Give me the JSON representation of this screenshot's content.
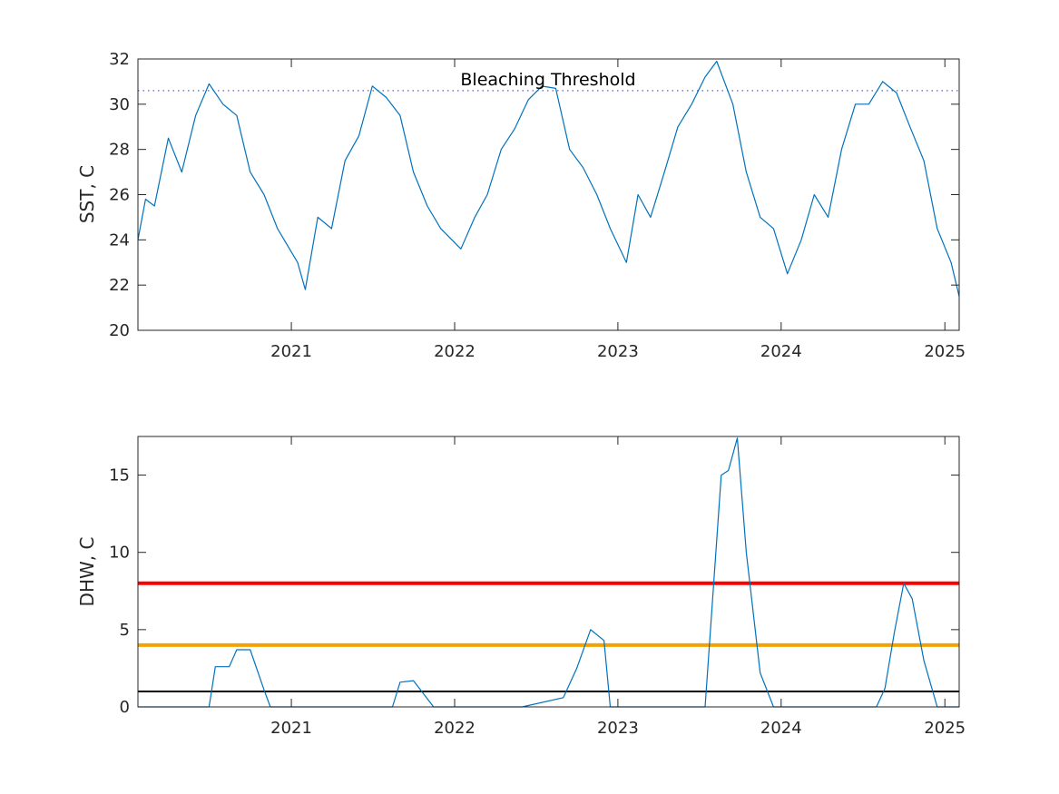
{
  "chart_data": [
    {
      "type": "line",
      "title": "",
      "xlabel": "",
      "ylabel": "SST, C",
      "xlim": [
        "2020-01-24",
        "2025-02-02"
      ],
      "ylim": [
        20,
        32
      ],
      "x_ticks": [
        "2021",
        "2022",
        "2023",
        "2024",
        "2025"
      ],
      "y_ticks": [
        20,
        22,
        24,
        26,
        28,
        30,
        32
      ],
      "grid": false,
      "legend": "none",
      "annotation": "Bleaching Threshold",
      "threshold": {
        "value": 30.6,
        "style": "dotted",
        "color": "#5a5ad6"
      },
      "series": [
        {
          "color": "#0072bd",
          "x": [
            "2020-01-24",
            "2020-02-10",
            "2020-03-01",
            "2020-04-01",
            "2020-05-01",
            "2020-06-01",
            "2020-07-01",
            "2020-08-01",
            "2020-09-01",
            "2020-10-01",
            "2020-11-01",
            "2020-12-01",
            "2021-01-15",
            "2021-02-01",
            "2021-03-01",
            "2021-04-01",
            "2021-05-01",
            "2021-06-01",
            "2021-07-01",
            "2021-08-01",
            "2021-09-01",
            "2021-10-01",
            "2021-11-01",
            "2021-12-01",
            "2022-01-15",
            "2022-02-15",
            "2022-03-15",
            "2022-04-15",
            "2022-05-15",
            "2022-06-15",
            "2022-07-15",
            "2022-08-15",
            "2022-09-15",
            "2022-10-15",
            "2022-11-15",
            "2022-12-15",
            "2023-01-20",
            "2023-02-15",
            "2023-03-15",
            "2023-04-15",
            "2023-05-15",
            "2023-06-15",
            "2023-07-15",
            "2023-08-10",
            "2023-09-15",
            "2023-10-15",
            "2023-11-15",
            "2023-12-15",
            "2024-01-15",
            "2024-02-15",
            "2024-03-15",
            "2024-04-15",
            "2024-05-15",
            "2024-06-15",
            "2024-07-15",
            "2024-08-15",
            "2024-09-15",
            "2024-10-15",
            "2024-11-15",
            "2024-12-15",
            "2025-01-15",
            "2025-02-02"
          ],
          "y": [
            24.0,
            25.8,
            25.5,
            28.5,
            27.0,
            29.5,
            30.9,
            30.0,
            29.5,
            27.0,
            26.0,
            24.5,
            23.0,
            21.8,
            25.0,
            24.5,
            27.5,
            28.6,
            30.8,
            30.3,
            29.5,
            27.0,
            25.5,
            24.5,
            23.6,
            25.0,
            26.0,
            28.0,
            28.9,
            30.2,
            30.8,
            30.7,
            28.0,
            27.2,
            26.0,
            24.5,
            23.0,
            26.0,
            25.0,
            27.0,
            29.0,
            30.0,
            31.2,
            31.9,
            30.0,
            27.0,
            25.0,
            24.5,
            22.5,
            24.0,
            26.0,
            25.0,
            28.0,
            30.0,
            30.0,
            31.0,
            30.5,
            29.0,
            27.5,
            24.5,
            23.0,
            21.5
          ]
        }
      ]
    },
    {
      "type": "line",
      "title": "",
      "xlabel": "",
      "ylabel": "DHW, C",
      "xlim": [
        "2020-01-24",
        "2025-02-02"
      ],
      "ylim": [
        0,
        17.5
      ],
      "x_ticks": [
        "2021",
        "2022",
        "2023",
        "2024",
        "2025"
      ],
      "y_ticks": [
        0,
        5,
        10,
        15
      ],
      "grid": false,
      "legend": "none",
      "reference_lines": [
        {
          "value": 8,
          "color": "#ff0000"
        },
        {
          "value": 4,
          "color": "#f5a200"
        },
        {
          "value": 1,
          "color": "#000000"
        }
      ],
      "series": [
        {
          "color": "#0072bd",
          "x": [
            "2020-01-24",
            "2020-07-01",
            "2020-07-15",
            "2020-08-15",
            "2020-09-01",
            "2020-10-01",
            "2020-11-01",
            "2020-11-15",
            "2021-06-01",
            "2021-08-15",
            "2021-09-01",
            "2021-10-01",
            "2021-11-15",
            "2021-12-01",
            "2022-06-01",
            "2022-09-01",
            "2022-10-01",
            "2022-11-01",
            "2022-12-01",
            "2022-12-15",
            "2023-06-15",
            "2023-07-15",
            "2023-08-20",
            "2023-09-05",
            "2023-09-25",
            "2023-10-15",
            "2023-11-15",
            "2023-12-15",
            "2024-01-05",
            "2024-08-01",
            "2024-08-20",
            "2024-09-10",
            "2024-10-01",
            "2024-10-20",
            "2024-11-15",
            "2024-12-15",
            "2025-01-01",
            "2025-02-02"
          ],
          "y": [
            0,
            0,
            2.6,
            2.6,
            3.7,
            3.7,
            1.1,
            0,
            0,
            0,
            1.6,
            1.7,
            0,
            0,
            0,
            0.6,
            2.5,
            5.0,
            4.3,
            0,
            0,
            0,
            15.0,
            15.3,
            17.4,
            10.0,
            2.2,
            0,
            0,
            0,
            1.2,
            4.8,
            8.0,
            7.0,
            3.0,
            0,
            0,
            0
          ]
        }
      ]
    }
  ]
}
